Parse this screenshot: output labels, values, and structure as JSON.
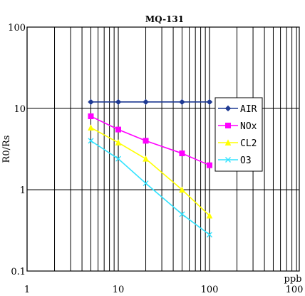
{
  "chart_data": {
    "type": "line",
    "title": "MQ-131",
    "xlabel": "ppb",
    "ylabel": "R0/Rs",
    "x_scale": "log",
    "y_scale": "log",
    "xlim": [
      1,
      100
    ],
    "ylim": [
      0.1,
      100
    ],
    "x_ticks": [
      "1",
      "10",
      "100",
      "100"
    ],
    "y_ticks": [
      "100",
      "10",
      "1",
      "0.1"
    ],
    "grid": true,
    "legend_position": "right",
    "series": [
      {
        "name": "AIR",
        "color": "#1f3a93",
        "marker": "diamond",
        "x": [
          5,
          10,
          20,
          50,
          100
        ],
        "y": [
          12,
          12,
          12,
          12,
          12
        ]
      },
      {
        "name": "NOx",
        "color": "#ff00ff",
        "marker": "square",
        "x": [
          5,
          10,
          20,
          50,
          100
        ],
        "y": [
          8,
          5.5,
          4,
          2.8,
          2
        ]
      },
      {
        "name": "CL2",
        "color": "#ffff00",
        "marker": "triangle",
        "x": [
          5,
          10,
          20,
          50,
          100
        ],
        "y": [
          5.8,
          3.8,
          2.4,
          1,
          0.48
        ]
      },
      {
        "name": "O3",
        "color": "#33e3ff",
        "marker": "x",
        "x": [
          5,
          10,
          20,
          50,
          100
        ],
        "y": [
          4,
          2.4,
          1.2,
          0.5,
          0.28
        ]
      }
    ]
  }
}
